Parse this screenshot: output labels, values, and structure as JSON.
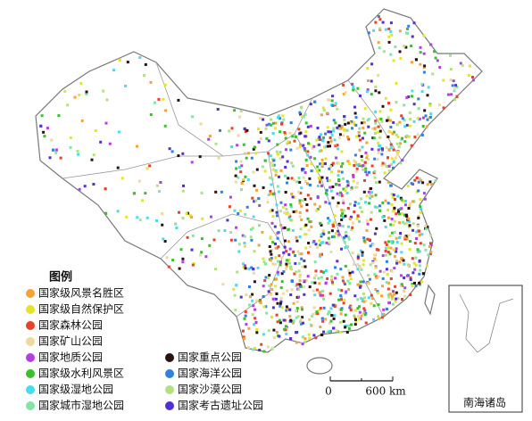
{
  "legend": {
    "title": "图例",
    "items": [
      {
        "label": "国家级风景名胜区",
        "color": "#f4a23a"
      },
      {
        "label": "国家级自然保护区",
        "color": "#e4e42c"
      },
      {
        "label": "国家森林公园",
        "color": "#e8402a"
      },
      {
        "label": "国家矿山公园",
        "color": "#eed9a0"
      },
      {
        "label": "国家地质公园",
        "color": "#b040e0"
      },
      {
        "label": "国家级水利风景区",
        "color": "#3cbf2c"
      },
      {
        "label": "国家级湿地公园",
        "color": "#48dcf0"
      },
      {
        "label": "国家城市湿地公园",
        "color": "#84e4a4"
      },
      {
        "label": "国家重点公园",
        "color": "#2a1010"
      },
      {
        "label": "国家海洋公园",
        "color": "#3080e0"
      },
      {
        "label": "国家沙漠公园",
        "color": "#b4e084"
      },
      {
        "label": "国家考古遗址公园",
        "color": "#5030d0"
      }
    ]
  },
  "scale_bar": {
    "start": "0",
    "end": "600 km"
  },
  "inset": {
    "label": "南海诸岛"
  }
}
